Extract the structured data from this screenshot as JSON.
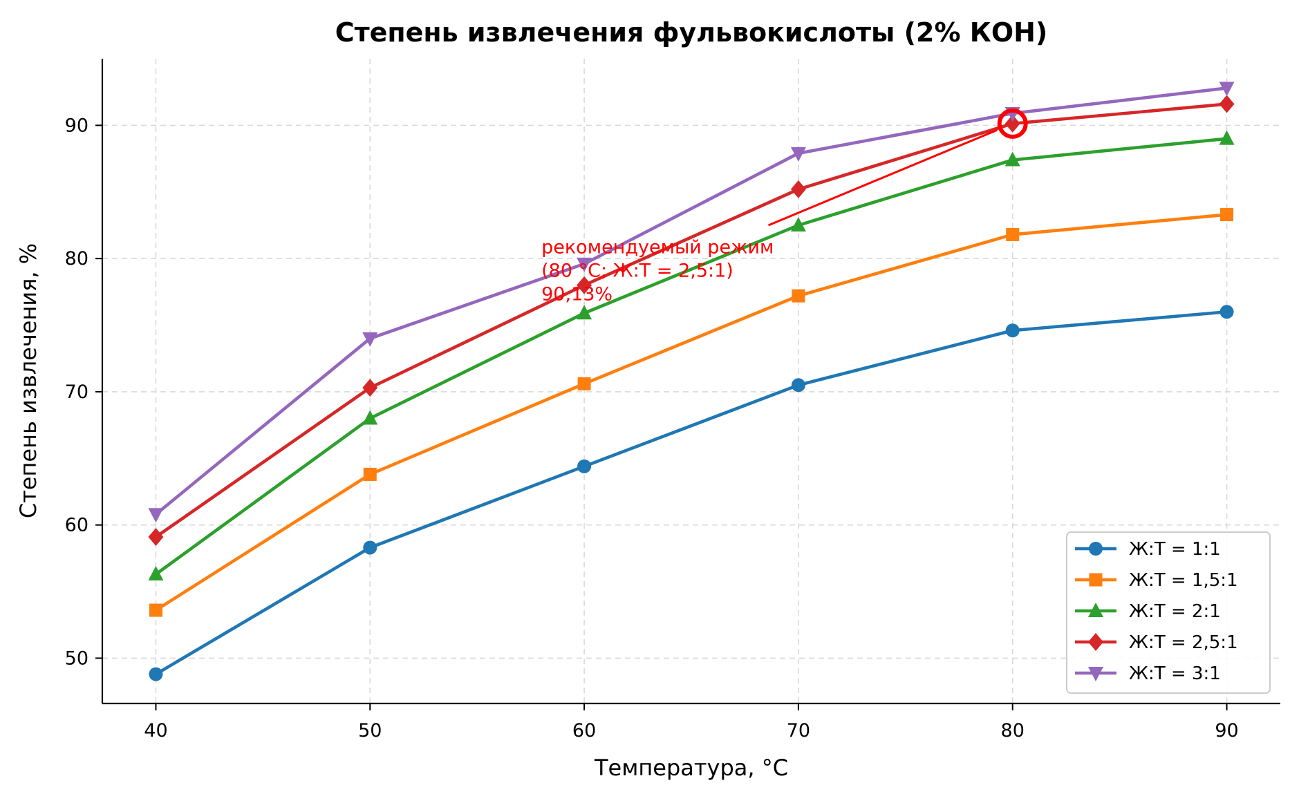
{
  "chart_data": {
    "type": "line",
    "title": "Степень извлечения фульвокислоты (2% КОН)",
    "xlabel": "Температура, °C",
    "ylabel": "Степень извлечения, %",
    "x": [
      40,
      50,
      60,
      70,
      80,
      90
    ],
    "xlim": [
      37.5,
      92.5
    ],
    "ylim": [
      46.6,
      95
    ],
    "xticks": [
      40,
      50,
      60,
      70,
      80,
      90
    ],
    "yticks": [
      50,
      60,
      70,
      80,
      90
    ],
    "grid": true,
    "legend_position": "lower-right",
    "series": [
      {
        "name": "Ж:Т = 1:1",
        "color": "#1f77b4",
        "marker": "circle",
        "values": [
          48.8,
          58.3,
          64.4,
          70.5,
          74.6,
          76.0
        ]
      },
      {
        "name": "Ж:Т = 1,5:1",
        "color": "#ff7f0e",
        "marker": "square",
        "values": [
          53.6,
          63.8,
          70.6,
          77.2,
          81.8,
          83.3
        ]
      },
      {
        "name": "Ж:Т = 2:1",
        "color": "#2ca02c",
        "marker": "triangle-up",
        "values": [
          56.3,
          68.0,
          75.9,
          82.5,
          87.4,
          89.0
        ]
      },
      {
        "name": "Ж:Т = 2,5:1",
        "color": "#d62728",
        "marker": "diamond",
        "values": [
          59.1,
          70.3,
          78.0,
          85.2,
          90.13,
          91.6
        ]
      },
      {
        "name": "Ж:Т = 3:1",
        "color": "#9467bd",
        "marker": "triangle-down",
        "values": [
          60.8,
          74.0,
          79.6,
          87.9,
          90.9,
          92.8
        ]
      }
    ],
    "annotation": {
      "lines": [
        "рекомендуемый режим",
        "(80 °C; Ж:Т = 2,5:1)",
        "90,13%"
      ],
      "color": "#ff0000",
      "point": {
        "x": 80,
        "y": 90.13
      },
      "text_anchor": {
        "x": 58,
        "y": 80.4
      },
      "arrow_tail": {
        "x": 68.6,
        "y": 82.5
      }
    }
  }
}
